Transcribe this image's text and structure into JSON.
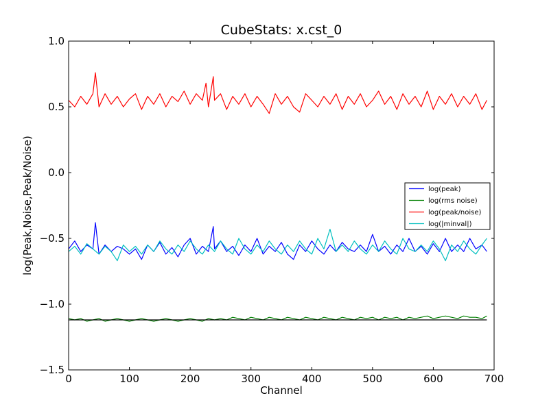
{
  "chart_data": {
    "type": "line",
    "title": "CubeStats: x.cst_0",
    "xlabel": "Channel",
    "ylabel": "log(Peak,Noise,Peak/Noise)",
    "xlim": [
      0,
      700
    ],
    "ylim": [
      -1.5,
      1.0
    ],
    "x_ticks": [
      0,
      100,
      200,
      300,
      400,
      500,
      600,
      700
    ],
    "x_tick_labels": [
      "0",
      "100",
      "200",
      "300",
      "400",
      "500",
      "600",
      "700"
    ],
    "y_ticks": [
      1.0,
      0.5,
      0.0,
      -0.5,
      -1.0,
      -1.5
    ],
    "y_tick_labels": [
      "1.0",
      "0.5",
      "0.0",
      "−0.5",
      "−1.0",
      "−1.5"
    ],
    "grid": false,
    "legend_position": "right",
    "series": [
      {
        "name": "log(peak)",
        "color": "#0000ff",
        "x": [
          0,
          10,
          20,
          30,
          40,
          44,
          50,
          60,
          70,
          80,
          90,
          100,
          110,
          120,
          130,
          140,
          150,
          160,
          170,
          180,
          190,
          200,
          210,
          220,
          230,
          238,
          240,
          250,
          260,
          270,
          280,
          290,
          300,
          310,
          320,
          330,
          340,
          350,
          360,
          370,
          380,
          390,
          400,
          410,
          420,
          430,
          440,
          450,
          460,
          470,
          480,
          490,
          500,
          510,
          520,
          530,
          540,
          550,
          560,
          570,
          580,
          590,
          600,
          610,
          620,
          630,
          640,
          650,
          660,
          670,
          680,
          688
        ],
        "y": [
          -0.58,
          -0.52,
          -0.6,
          -0.55,
          -0.58,
          -0.38,
          -0.62,
          -0.55,
          -0.6,
          -0.56,
          -0.58,
          -0.62,
          -0.58,
          -0.66,
          -0.55,
          -0.6,
          -0.53,
          -0.62,
          -0.57,
          -0.64,
          -0.55,
          -0.5,
          -0.62,
          -0.56,
          -0.6,
          -0.41,
          -0.58,
          -0.52,
          -0.6,
          -0.56,
          -0.63,
          -0.55,
          -0.6,
          -0.5,
          -0.62,
          -0.56,
          -0.6,
          -0.53,
          -0.62,
          -0.66,
          -0.55,
          -0.6,
          -0.52,
          -0.58,
          -0.62,
          -0.55,
          -0.6,
          -0.53,
          -0.58,
          -0.6,
          -0.55,
          -0.6,
          -0.47,
          -0.6,
          -0.56,
          -0.62,
          -0.55,
          -0.6,
          -0.5,
          -0.6,
          -0.56,
          -0.62,
          -0.54,
          -0.6,
          -0.5,
          -0.6,
          -0.55,
          -0.6,
          -0.5,
          -0.58,
          -0.55,
          -0.6
        ]
      },
      {
        "name": "log(rms noise)",
        "color": "#008000",
        "x": [
          0,
          10,
          20,
          30,
          40,
          50,
          60,
          70,
          80,
          90,
          100,
          110,
          120,
          130,
          140,
          150,
          160,
          170,
          180,
          190,
          200,
          210,
          220,
          230,
          240,
          250,
          260,
          270,
          280,
          290,
          300,
          310,
          320,
          330,
          340,
          350,
          360,
          370,
          380,
          390,
          400,
          410,
          420,
          430,
          440,
          450,
          460,
          470,
          480,
          490,
          500,
          510,
          520,
          530,
          540,
          550,
          560,
          570,
          580,
          590,
          600,
          610,
          620,
          630,
          640,
          650,
          660,
          670,
          680,
          688
        ],
        "y": [
          -1.11,
          -1.12,
          -1.11,
          -1.13,
          -1.12,
          -1.11,
          -1.13,
          -1.12,
          -1.11,
          -1.12,
          -1.13,
          -1.12,
          -1.11,
          -1.12,
          -1.13,
          -1.12,
          -1.11,
          -1.12,
          -1.13,
          -1.12,
          -1.11,
          -1.12,
          -1.13,
          -1.11,
          -1.12,
          -1.11,
          -1.12,
          -1.1,
          -1.11,
          -1.12,
          -1.1,
          -1.11,
          -1.12,
          -1.1,
          -1.11,
          -1.12,
          -1.1,
          -1.11,
          -1.12,
          -1.1,
          -1.11,
          -1.12,
          -1.1,
          -1.11,
          -1.12,
          -1.1,
          -1.11,
          -1.12,
          -1.1,
          -1.11,
          -1.1,
          -1.12,
          -1.1,
          -1.11,
          -1.1,
          -1.12,
          -1.1,
          -1.11,
          -1.1,
          -1.09,
          -1.11,
          -1.1,
          -1.09,
          -1.1,
          -1.11,
          -1.09,
          -1.1,
          -1.1,
          -1.11,
          -1.09
        ]
      },
      {
        "name": "log(peak/noise)",
        "color": "#ff0000",
        "x": [
          0,
          10,
          20,
          30,
          40,
          44,
          50,
          60,
          70,
          80,
          90,
          100,
          110,
          120,
          130,
          140,
          150,
          160,
          170,
          180,
          190,
          200,
          210,
          220,
          226,
          230,
          238,
          240,
          250,
          260,
          270,
          280,
          290,
          300,
          310,
          320,
          330,
          340,
          350,
          360,
          370,
          380,
          390,
          400,
          410,
          420,
          430,
          440,
          450,
          460,
          470,
          480,
          490,
          500,
          510,
          520,
          530,
          540,
          550,
          560,
          570,
          580,
          590,
          600,
          610,
          620,
          630,
          640,
          650,
          660,
          670,
          680,
          688
        ],
        "y": [
          0.55,
          0.5,
          0.58,
          0.52,
          0.6,
          0.76,
          0.5,
          0.6,
          0.52,
          0.58,
          0.5,
          0.56,
          0.6,
          0.48,
          0.58,
          0.52,
          0.6,
          0.5,
          0.58,
          0.54,
          0.62,
          0.52,
          0.6,
          0.55,
          0.68,
          0.5,
          0.73,
          0.55,
          0.6,
          0.48,
          0.58,
          0.52,
          0.6,
          0.5,
          0.58,
          0.52,
          0.45,
          0.6,
          0.52,
          0.58,
          0.5,
          0.46,
          0.6,
          0.55,
          0.5,
          0.58,
          0.52,
          0.6,
          0.48,
          0.58,
          0.52,
          0.6,
          0.5,
          0.55,
          0.62,
          0.52,
          0.58,
          0.48,
          0.6,
          0.52,
          0.58,
          0.5,
          0.62,
          0.48,
          0.58,
          0.52,
          0.6,
          0.5,
          0.58,
          0.52,
          0.6,
          0.48,
          0.55
        ]
      },
      {
        "name": "log(|minval|)",
        "color": "#00bfbf",
        "x": [
          0,
          10,
          20,
          30,
          40,
          50,
          60,
          70,
          80,
          90,
          100,
          110,
          120,
          130,
          140,
          150,
          160,
          170,
          180,
          190,
          200,
          210,
          220,
          230,
          240,
          250,
          260,
          270,
          280,
          290,
          300,
          310,
          320,
          330,
          340,
          350,
          360,
          370,
          380,
          390,
          400,
          410,
          420,
          430,
          440,
          450,
          460,
          470,
          480,
          490,
          500,
          510,
          520,
          530,
          540,
          550,
          560,
          570,
          580,
          590,
          600,
          610,
          620,
          630,
          640,
          650,
          660,
          670,
          680,
          688
        ],
        "y": [
          -0.6,
          -0.56,
          -0.62,
          -0.54,
          -0.58,
          -0.62,
          -0.56,
          -0.6,
          -0.67,
          -0.55,
          -0.6,
          -0.56,
          -0.62,
          -0.55,
          -0.6,
          -0.52,
          -0.58,
          -0.62,
          -0.55,
          -0.6,
          -0.52,
          -0.58,
          -0.62,
          -0.55,
          -0.6,
          -0.52,
          -0.58,
          -0.62,
          -0.5,
          -0.58,
          -0.62,
          -0.55,
          -0.6,
          -0.52,
          -0.58,
          -0.62,
          -0.55,
          -0.6,
          -0.52,
          -0.58,
          -0.62,
          -0.5,
          -0.58,
          -0.43,
          -0.6,
          -0.55,
          -0.6,
          -0.52,
          -0.58,
          -0.62,
          -0.55,
          -0.6,
          -0.52,
          -0.58,
          -0.62,
          -0.5,
          -0.58,
          -0.6,
          -0.55,
          -0.6,
          -0.52,
          -0.58,
          -0.67,
          -0.55,
          -0.6,
          -0.52,
          -0.58,
          -0.62,
          -0.55,
          -0.5
        ]
      },
      {
        "name": "",
        "color": "#000000",
        "x": [
          0,
          688
        ],
        "y": [
          -1.12,
          -1.12
        ]
      }
    ]
  }
}
